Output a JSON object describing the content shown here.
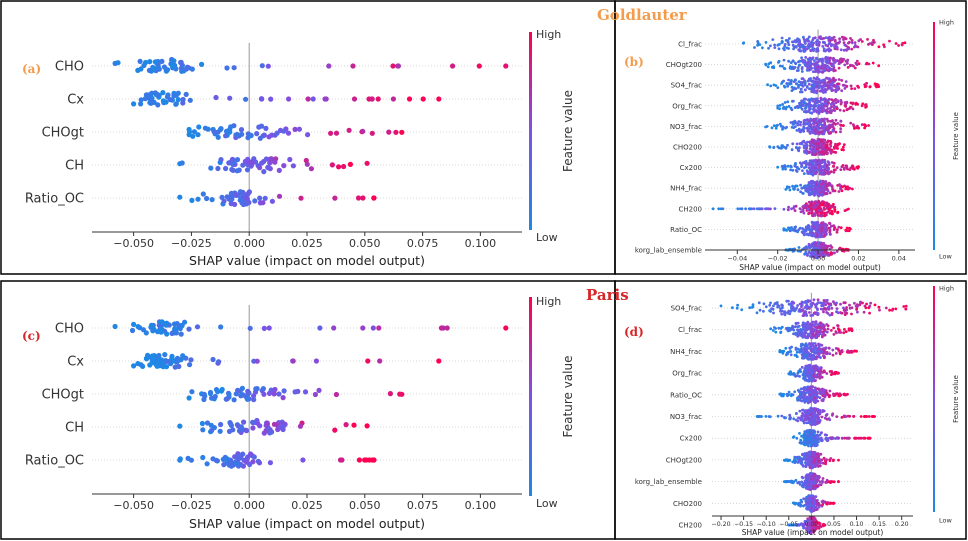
{
  "site_labels": {
    "top": "Goldlauter",
    "bottom": "Paris"
  },
  "colors": {
    "low": "#1E88E5",
    "high": "#FF0052",
    "site_label": "#F39C4E",
    "panel_label_orange": "#F39C4E",
    "panel_label_red": "#D62728"
  },
  "colorbar": {
    "high_label": "High",
    "low_label": "Low",
    "feature_label": "Feature value"
  },
  "chart_data": [
    {
      "type": "scatter",
      "panel_label": "(a)",
      "label_color": "orange",
      "xlabel": "SHAP value (impact on model output)",
      "xlim": [
        -0.068,
        0.118
      ],
      "xticks": [
        -0.05,
        -0.025,
        0.0,
        0.025,
        0.05,
        0.075,
        0.1
      ],
      "xtick_labels": [
        "−0.050",
        "−0.025",
        "0.000",
        "0.025",
        "0.050",
        "0.075",
        "0.100"
      ],
      "features": [
        {
          "name": "CHO",
          "min": -0.058,
          "max": 0.111,
          "center": -0.036,
          "width": 0.018
        },
        {
          "name": "Cx",
          "min": -0.05,
          "max": 0.082,
          "center": -0.037,
          "width": 0.016
        },
        {
          "name": "CHOgt",
          "min": -0.026,
          "max": 0.066,
          "center": -0.004,
          "width": 0.03
        },
        {
          "name": "CH",
          "min": -0.03,
          "max": 0.051,
          "center": 0.003,
          "width": 0.03
        },
        {
          "name": "Ratio_OC",
          "min": -0.03,
          "max": 0.054,
          "center": -0.005,
          "width": 0.014
        }
      ]
    },
    {
      "type": "scatter",
      "panel_label": "(b)",
      "label_color": "orange",
      "xlabel": "SHAP value (impact on model output)",
      "xlim": [
        -0.056,
        0.048
      ],
      "xticks": [
        -0.04,
        -0.02,
        0.0,
        0.02,
        0.04
      ],
      "xtick_labels": [
        "−0.04",
        "−0.02",
        "0.00",
        "0.02",
        "0.04"
      ],
      "features": [
        {
          "name": "Cl_frac",
          "min": -0.037,
          "max": 0.043,
          "center": 0.0,
          "width": 0.03
        },
        {
          "name": "CHOgt200",
          "min": -0.026,
          "max": 0.03,
          "center": 0.0,
          "width": 0.02
        },
        {
          "name": "SO4_frac",
          "min": -0.025,
          "max": 0.03,
          "center": 0.0,
          "width": 0.02
        },
        {
          "name": "Org_frac",
          "min": -0.02,
          "max": 0.024,
          "center": 0.0,
          "width": 0.016
        },
        {
          "name": "NO3_frac",
          "min": -0.026,
          "max": 0.025,
          "center": 0.0,
          "width": 0.016
        },
        {
          "name": "CHO200",
          "min": -0.024,
          "max": 0.013,
          "center": 0.0,
          "width": 0.012
        },
        {
          "name": "Cx200",
          "min": -0.02,
          "max": 0.02,
          "center": 0.0,
          "width": 0.012
        },
        {
          "name": "NH4_frac",
          "min": -0.016,
          "max": 0.017,
          "center": 0.0,
          "width": 0.01
        },
        {
          "name": "CH200",
          "min": -0.052,
          "max": 0.015,
          "center": 0.0,
          "width": 0.01
        },
        {
          "name": "Ratio_OC",
          "min": -0.017,
          "max": 0.016,
          "center": 0.0,
          "width": 0.01
        },
        {
          "name": "korg_lab_ensemble",
          "min": -0.016,
          "max": 0.015,
          "center": 0.0,
          "width": 0.008
        }
      ]
    },
    {
      "type": "scatter",
      "panel_label": "(c)",
      "label_color": "red",
      "xlabel": "SHAP value (impact on model output)",
      "xlim": [
        -0.068,
        0.118
      ],
      "xticks": [
        -0.05,
        -0.025,
        0.0,
        0.025,
        0.05,
        0.075,
        0.1
      ],
      "xtick_labels": [
        "−0.050",
        "−0.025",
        "0.000",
        "0.025",
        "0.050",
        "0.075",
        "0.100"
      ],
      "features": [
        {
          "name": "CHO",
          "min": -0.058,
          "max": 0.111,
          "center": -0.036,
          "width": 0.018
        },
        {
          "name": "Cx",
          "min": -0.05,
          "max": 0.082,
          "center": -0.037,
          "width": 0.016
        },
        {
          "name": "CHOgt",
          "min": -0.026,
          "max": 0.066,
          "center": -0.004,
          "width": 0.03
        },
        {
          "name": "CH",
          "min": -0.03,
          "max": 0.051,
          "center": 0.003,
          "width": 0.03
        },
        {
          "name": "Ratio_OC",
          "min": -0.03,
          "max": 0.054,
          "center": -0.005,
          "width": 0.014
        }
      ]
    },
    {
      "type": "scatter",
      "panel_label": "(d)",
      "label_color": "red",
      "xlabel": "SHAP value (impact on model output)",
      "xlim": [
        -0.22,
        0.225
      ],
      "xticks": [
        -0.2,
        -0.15,
        -0.1,
        -0.05,
        0.0,
        0.05,
        0.1,
        0.15,
        0.2
      ],
      "xtick_labels": [
        "−0.20",
        "−0.15",
        "−0.10",
        "−0.05",
        "0.00",
        "0.05",
        "0.10",
        "0.15",
        "0.20"
      ],
      "features": [
        {
          "name": "SO4_frac",
          "min": -0.2,
          "max": 0.21,
          "center": 0.0,
          "width": 0.16
        },
        {
          "name": "Cl_frac",
          "min": -0.09,
          "max": 0.09,
          "center": 0.0,
          "width": 0.06
        },
        {
          "name": "NH4_frac",
          "min": -0.07,
          "max": 0.1,
          "center": 0.0,
          "width": 0.05
        },
        {
          "name": "Org_frac",
          "min": -0.05,
          "max": 0.06,
          "center": 0.0,
          "width": 0.03
        },
        {
          "name": "Ratio_OC",
          "min": -0.07,
          "max": 0.08,
          "center": 0.0,
          "width": 0.04
        },
        {
          "name": "NO3_frac",
          "min": -0.12,
          "max": 0.14,
          "center": 0.0,
          "width": 0.04
        },
        {
          "name": "Cx200",
          "min": -0.04,
          "max": 0.13,
          "center": 0.0,
          "width": 0.03
        },
        {
          "name": "CHOgt200",
          "min": -0.06,
          "max": 0.06,
          "center": 0.0,
          "width": 0.03
        },
        {
          "name": "korg_lab_ensemble",
          "min": -0.06,
          "max": 0.06,
          "center": 0.0,
          "width": 0.025
        },
        {
          "name": "CHO200",
          "min": -0.04,
          "max": 0.05,
          "center": 0.0,
          "width": 0.02
        },
        {
          "name": "CH200",
          "min": -0.05,
          "max": 0.03,
          "center": 0.0,
          "width": 0.015
        }
      ]
    }
  ]
}
